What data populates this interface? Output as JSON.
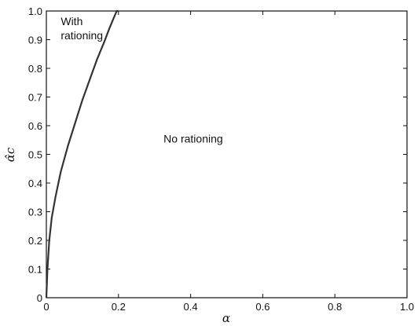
{
  "chart_data": {
    "type": "line",
    "xlabel": "α",
    "ylabel": "α̂c",
    "xlim": [
      0,
      1
    ],
    "ylim": [
      0,
      1
    ],
    "x_ticks": [
      "0",
      "0.2",
      "0.4",
      "0.6",
      "0.8",
      "1.0"
    ],
    "y_ticks": [
      "0",
      "0.1",
      "0.2",
      "0.3",
      "0.4",
      "0.5",
      "0.6",
      "0.7",
      "0.8",
      "0.9",
      "1.0"
    ],
    "grid": false,
    "series": [
      {
        "color": "#333333",
        "x": [
          0,
          0.003,
          0.008,
          0.015,
          0.025,
          0.04,
          0.06,
          0.08,
          0.1,
          0.12,
          0.14,
          0.16,
          0.175,
          0.185,
          0.195,
          0.2
        ],
        "y": [
          0,
          0.1,
          0.2,
          0.28,
          0.35,
          0.44,
          0.53,
          0.61,
          0.69,
          0.76,
          0.83,
          0.89,
          0.94,
          0.97,
          1.0,
          1.0
        ]
      }
    ],
    "annotations": [
      {
        "text": "With",
        "x": 0.04,
        "y": 0.965
      },
      {
        "text": "rationing",
        "x": 0.04,
        "y": 0.915
      },
      {
        "text": "No rationing",
        "x": 0.325,
        "y": 0.555
      }
    ]
  }
}
